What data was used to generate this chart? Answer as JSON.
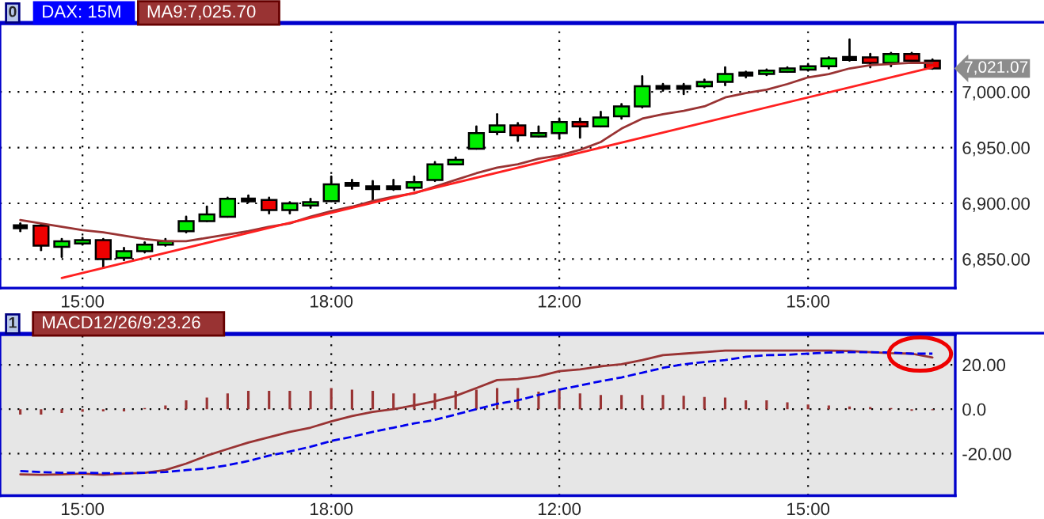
{
  "chart_data": [
    {
      "type": "candlestick",
      "title": "DAX: 15M",
      "annotations": [
        "0",
        "7,021.07"
      ],
      "categories": [
        null,
        null,
        null,
        "15:00",
        null,
        null,
        null,
        null,
        null,
        null,
        null,
        null,
        null,
        null,
        null,
        "18:00",
        null,
        null,
        null,
        null,
        null,
        null,
        null,
        null,
        null,
        null,
        "12:00",
        null,
        null,
        null,
        null,
        null,
        null,
        null,
        null,
        null,
        null,
        null,
        "15:00",
        null,
        null,
        null,
        null,
        null,
        null
      ],
      "ohlc": [
        [
          6879,
          6882,
          6875,
          6879
        ],
        [
          6880,
          6881,
          6858,
          6862
        ],
        [
          6861,
          6868,
          6852,
          6866
        ],
        [
          6864,
          6869,
          6863,
          6867
        ],
        [
          6867,
          6868,
          6842,
          6850
        ],
        [
          6851,
          6860,
          6849,
          6857
        ],
        [
          6857,
          6865,
          6856,
          6863
        ],
        [
          6863,
          6868,
          6862,
          6866
        ],
        [
          6875,
          6888,
          6874,
          6884
        ],
        [
          6884,
          6897,
          6884,
          6890
        ],
        [
          6888,
          6905,
          6888,
          6904
        ],
        [
          6903,
          6907,
          6901,
          6903
        ],
        [
          6903,
          6905,
          6891,
          6894
        ],
        [
          6894,
          6901,
          6891,
          6900
        ],
        [
          6898,
          6904,
          6896,
          6901
        ],
        [
          6902,
          6924,
          6902,
          6917
        ],
        [
          6917,
          6921,
          6913,
          6917
        ],
        [
          6914,
          6920,
          6901,
          6914
        ],
        [
          6914,
          6921,
          6912,
          6914
        ],
        [
          6914,
          6924,
          6912,
          6919
        ],
        [
          6921,
          6937,
          6920,
          6935
        ],
        [
          6935,
          6941,
          6935,
          6939
        ],
        [
          6949,
          6969,
          6949,
          6963
        ],
        [
          6964,
          6980,
          6962,
          6970
        ],
        [
          6970,
          6972,
          6956,
          6961
        ],
        [
          6960,
          6969,
          6960,
          6963
        ],
        [
          6963,
          6976,
          6958,
          6973
        ],
        [
          6973,
          6976,
          6959,
          6969
        ],
        [
          6969,
          6982,
          6969,
          6977
        ],
        [
          6978,
          6989,
          6976,
          6987
        ],
        [
          6987,
          7014,
          6986,
          7005
        ],
        [
          7004,
          7007,
          7001,
          7004
        ],
        [
          7004,
          7007,
          6998,
          7004
        ],
        [
          7005,
          7011,
          7004,
          7009
        ],
        [
          7009,
          7022,
          7006,
          7016
        ],
        [
          7016,
          7018,
          7013,
          7016
        ],
        [
          7016,
          7020,
          7015,
          7019
        ],
        [
          7018,
          7022,
          7018,
          7021
        ],
        [
          7020,
          7025,
          7019,
          7023
        ],
        [
          7023,
          7031,
          7021,
          7030
        ],
        [
          7030,
          7047,
          7028,
          7030
        ],
        [
          7031,
          7034,
          7022,
          7026
        ],
        [
          7026,
          7035,
          7023,
          7034
        ],
        [
          7034,
          7035,
          7026,
          7028
        ],
        [
          7028,
          7029,
          7020.7,
          7021.07
        ]
      ],
      "colors": [
        "#000000",
        "#ee0000",
        "#00ee00",
        "#00ee00",
        "#ee0000",
        "#00ee00",
        "#00ee00",
        "#00ee00",
        "#00ee00",
        "#00ee00",
        "#00ee00",
        "#000000",
        "#ee0000",
        "#00ee00",
        "#00ee00",
        "#00ee00",
        "#000000",
        "#000000",
        "#000000",
        "#00ee00",
        "#00ee00",
        "#00ee00",
        "#00ee00",
        "#00ee00",
        "#ee0000",
        "#00ee00",
        "#00ee00",
        "#ee0000",
        "#00ee00",
        "#00ee00",
        "#00ee00",
        "#000000",
        "#000000",
        "#00ee00",
        "#00ee00",
        "#000000",
        "#00ee00",
        "#00ee00",
        "#00ee00",
        "#00ee00",
        "#000000",
        "#ee0000",
        "#00ee00",
        "#ee0000",
        "#ee0000"
      ],
      "series": [
        {
          "name": "MA9:7,025.70",
          "type": "line",
          "color": "#993333",
          "values": [
            6885,
            6882,
            6879,
            6876,
            6874,
            6871,
            6868,
            6866,
            6866,
            6869,
            6872,
            6875,
            6879,
            6882,
            6888,
            6893,
            6897,
            6902,
            6906,
            6909,
            6915,
            6921,
            6927,
            6932,
            6935,
            6940,
            6943,
            6948,
            6955,
            6967,
            6976,
            6980,
            6983,
            6987,
            6995,
            6999,
            7002,
            7007,
            7013,
            7016,
            7021,
            7024,
            7025,
            7026,
            7026
          ]
        },
        {
          "type": "line",
          "color": "#ff2020",
          "values": [
            null,
            null,
            6833,
            null,
            null,
            null,
            null,
            null,
            null,
            null,
            null,
            null,
            null,
            null,
            null,
            null,
            null,
            null,
            null,
            null,
            null,
            null,
            null,
            null,
            null,
            null,
            null,
            null,
            null,
            null,
            null,
            null,
            null,
            null,
            null,
            null,
            null,
            null,
            null,
            null,
            null,
            null,
            null,
            null,
            7022
          ]
        }
      ],
      "ylim": [
        6824,
        7061
      ],
      "yticks": [
        {
          "value": 6850,
          "label": "6,850.00"
        },
        {
          "value": 6900,
          "label": "6,900.00"
        },
        {
          "value": 6950,
          "label": "6,950.00"
        },
        {
          "value": 7000,
          "label": "7,000.00"
        }
      ],
      "grid": true,
      "line_style": "solid"
    },
    {
      "type": "line",
      "annotations": [
        "1"
      ],
      "categories": [
        null,
        null,
        null,
        "15:00",
        null,
        null,
        null,
        null,
        null,
        null,
        null,
        null,
        null,
        null,
        null,
        "18:00",
        null,
        null,
        null,
        null,
        null,
        null,
        null,
        null,
        null,
        null,
        "12:00",
        null,
        null,
        null,
        null,
        null,
        null,
        null,
        null,
        null,
        null,
        null,
        "15:00",
        null,
        null,
        null,
        null,
        null,
        null
      ],
      "series": [
        {
          "type": "bar",
          "color": "#993333",
          "values": [
            -2.4,
            -2.4,
            -1.7,
            -1.2,
            -1,
            -1,
            0.5,
            1.7,
            4,
            5.2,
            7.1,
            8.3,
            8.3,
            8.3,
            8.3,
            9.5,
            8.8,
            8.3,
            7.1,
            7.1,
            7.1,
            8.3,
            8.8,
            9.5,
            9.5,
            7.9,
            9,
            7.1,
            6.4,
            6.4,
            6.4,
            6.4,
            6,
            5.5,
            5.2,
            4,
            4,
            3.1,
            2.1,
            1.7,
            1.2,
            1,
            0.5,
            -0.7,
            -0.5
          ]
        },
        {
          "name": "MACD12/26/9:23.26",
          "type": "line",
          "color": "#993333",
          "line_style": "solid",
          "values": [
            -29.3,
            -29.5,
            -29.3,
            -29,
            -29.5,
            -29,
            -28.6,
            -27.4,
            -24.5,
            -20.9,
            -17.9,
            -15,
            -12.6,
            -10.2,
            -8.3,
            -5.5,
            -3.1,
            -1.2,
            0,
            1.7,
            3.6,
            6,
            9.5,
            13.1,
            13.6,
            14.8,
            17.1,
            17.9,
            19.3,
            20.2,
            22.1,
            24.3,
            25,
            25.7,
            26.4,
            26.4,
            26.4,
            26.4,
            26.4,
            26.4,
            26.2,
            25.7,
            25.2,
            25,
            23.3
          ]
        },
        {
          "type": "line",
          "color": "#0000ee",
          "line_style": "dashed",
          "values": [
            -27.8,
            -28.3,
            -28.6,
            -28.6,
            -28.8,
            -28.8,
            -28.6,
            -28.3,
            -27.4,
            -26.7,
            -25.2,
            -23.3,
            -20.9,
            -19,
            -16.9,
            -14.3,
            -12.4,
            -10.2,
            -8.3,
            -6.4,
            -4.8,
            -2.4,
            0,
            2.4,
            4,
            6.4,
            8.8,
            10.7,
            12.6,
            14.3,
            16.4,
            18.6,
            20.2,
            21.2,
            22.1,
            23.6,
            24.3,
            24.5,
            25,
            25.5,
            25.7,
            25.7,
            25.5,
            25,
            25
          ]
        }
      ],
      "ylim": [
        -38.9,
        33.5
      ],
      "yticks": [
        {
          "value": -20,
          "label": "-20.00"
        },
        {
          "value": 0,
          "label": "0.0"
        },
        {
          "value": 20,
          "label": "20.00"
        }
      ],
      "grid": true
    }
  ]
}
